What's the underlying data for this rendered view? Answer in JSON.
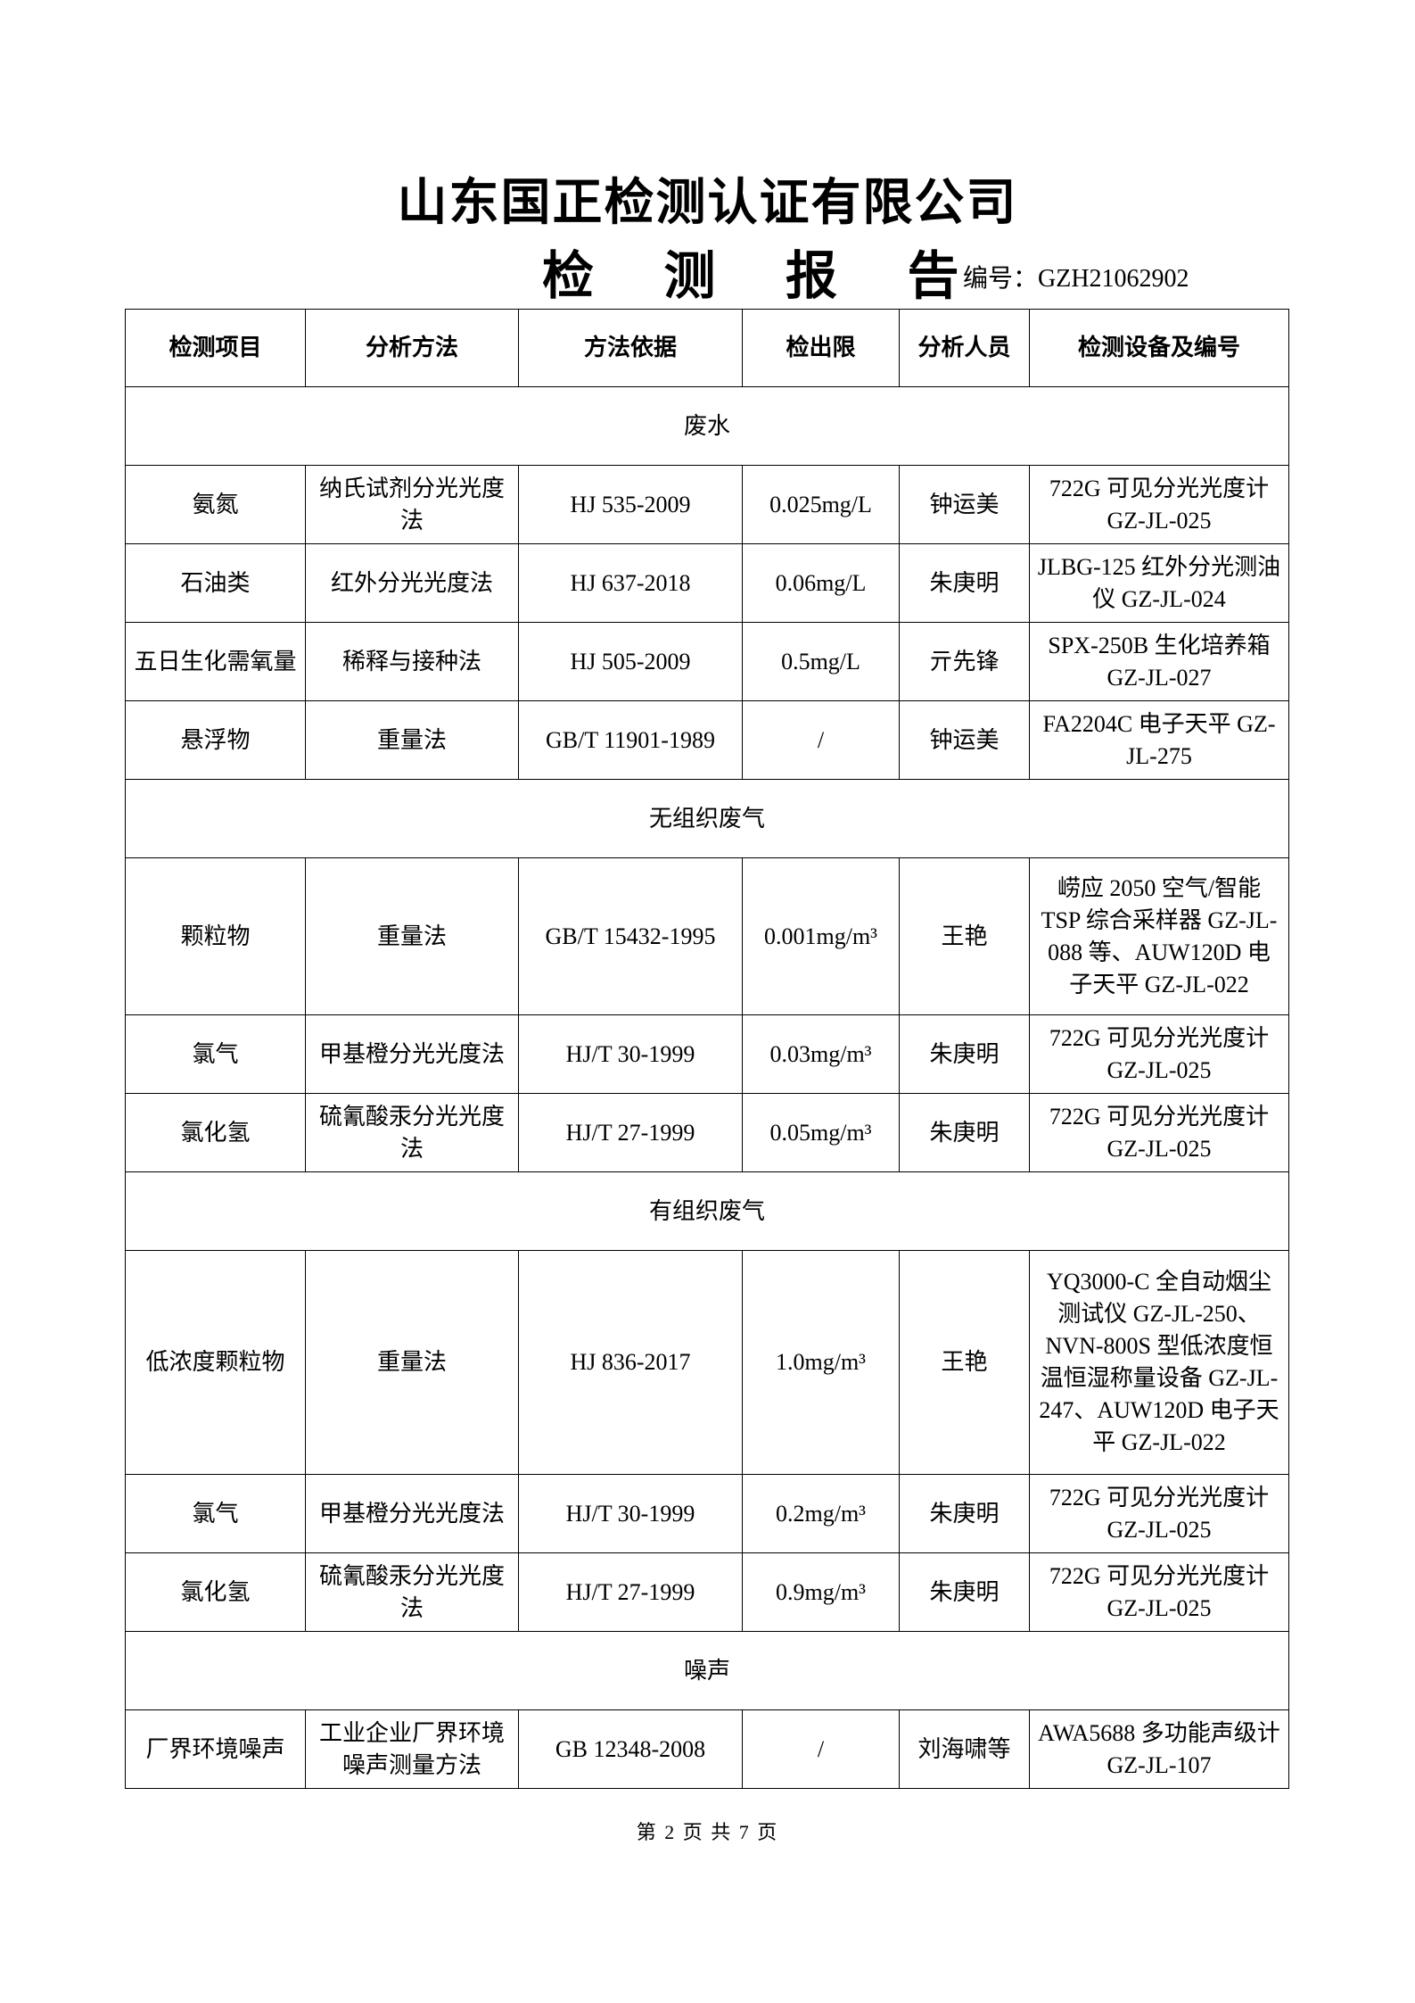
{
  "header": {
    "company": "山东国正检测认证有限公司",
    "doc_title": "检 测 报 告",
    "report_no": "编号：GZH21062902"
  },
  "table": {
    "columns": [
      "检测项目",
      "分析方法",
      "方法依据",
      "检出限",
      "分析人员",
      "检测设备及编号"
    ],
    "sections": [
      {
        "name": "废水",
        "rows": [
          [
            "氨氮",
            "纳氏试剂分光光度法",
            "HJ 535-2009",
            "0.025mg/L",
            "钟运美",
            "722G 可见分光光度计 GZ-JL-025"
          ],
          [
            "石油类",
            "红外分光光度法",
            "HJ 637-2018",
            "0.06mg/L",
            "朱庚明",
            "JLBG-125 红外分光测油仪 GZ-JL-024"
          ],
          [
            "五日生化需氧量",
            "稀释与接种法",
            "HJ 505-2009",
            "0.5mg/L",
            "亓先锋",
            "SPX-250B 生化培养箱 GZ-JL-027"
          ],
          [
            "悬浮物",
            "重量法",
            "GB/T 11901-1989",
            "/",
            "钟运美",
            "FA2204C 电子天平 GZ-JL-275"
          ]
        ]
      },
      {
        "name": "无组织废气",
        "rows": [
          [
            "颗粒物",
            "重量法",
            "GB/T 15432-1995",
            "0.001mg/m³",
            "王艳",
            "崂应 2050 空气/智能 TSP 综合采样器 GZ-JL-088 等、AUW120D 电子天平 GZ-JL-022"
          ],
          [
            "氯气",
            "甲基橙分光光度法",
            "HJ/T 30-1999",
            "0.03mg/m³",
            "朱庚明",
            "722G 可见分光光度计 GZ-JL-025"
          ],
          [
            "氯化氢",
            "硫氰酸汞分光光度法",
            "HJ/T 27-1999",
            "0.05mg/m³",
            "朱庚明",
            "722G 可见分光光度计 GZ-JL-025"
          ]
        ]
      },
      {
        "name": "有组织废气",
        "rows": [
          [
            "低浓度颗粒物",
            "重量法",
            "HJ 836-2017",
            "1.0mg/m³",
            "王艳",
            "YQ3000-C 全自动烟尘测试仪 GZ-JL-250、NVN-800S 型低浓度恒温恒湿称量设备 GZ-JL-247、AUW120D 电子天平 GZ-JL-022"
          ],
          [
            "氯气",
            "甲基橙分光光度法",
            "HJ/T 30-1999",
            "0.2mg/m³",
            "朱庚明",
            "722G 可见分光光度计 GZ-JL-025"
          ],
          [
            "氯化氢",
            "硫氰酸汞分光光度法",
            "HJ/T 27-1999",
            "0.9mg/m³",
            "朱庚明",
            "722G 可见分光光度计 GZ-JL-025"
          ]
        ]
      },
      {
        "name": "噪声",
        "rows": [
          [
            "厂界环境噪声",
            "工业企业厂界环境噪声测量方法",
            "GB 12348-2008",
            "/",
            "刘海啸等",
            "AWA5688 多功能声级计 GZ-JL-107"
          ]
        ]
      }
    ]
  },
  "footer": {
    "page": "第 2 页 共 7 页"
  }
}
